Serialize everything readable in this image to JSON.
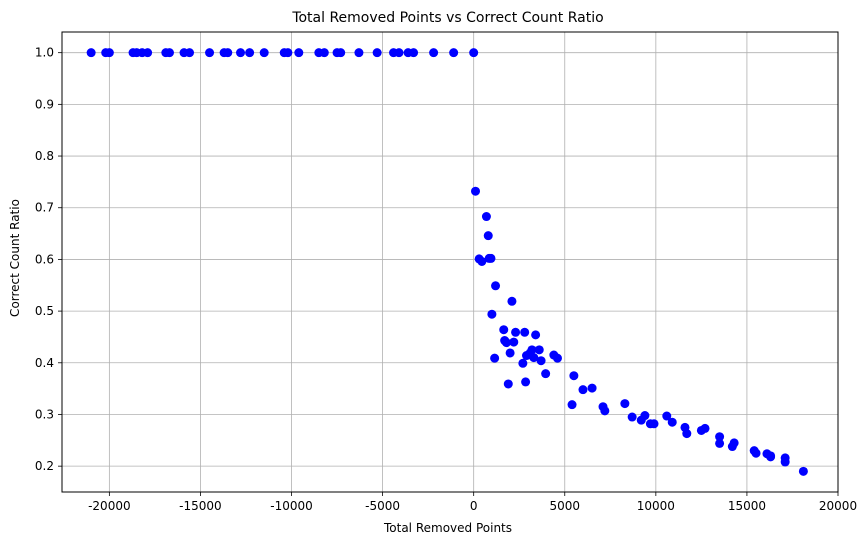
{
  "chart_data": {
    "type": "scatter",
    "title": "Total Removed Points vs Correct Count Ratio",
    "xlabel": "Total Removed Points",
    "ylabel": "Correct Count Ratio",
    "xlim": [
      -22600,
      20000
    ],
    "ylim": [
      0.15,
      1.04
    ],
    "xticks": [
      -20000,
      -15000,
      -10000,
      -5000,
      0,
      5000,
      10000,
      15000,
      20000
    ],
    "yticks": [
      0.2,
      0.3,
      0.4,
      0.5,
      0.6,
      0.7,
      0.8,
      0.9,
      1.0
    ],
    "ytick_labels": [
      "0.2",
      "0.3",
      "0.4",
      "0.5",
      "0.6",
      "0.7",
      "0.8",
      "0.9",
      "1.0"
    ],
    "grid": true,
    "legend": "none",
    "marker_color": "#0000ff",
    "points": [
      [
        -21000,
        1.0
      ],
      [
        -20200,
        1.0
      ],
      [
        -20000,
        1.0
      ],
      [
        -18700,
        1.0
      ],
      [
        -18500,
        1.0
      ],
      [
        -18200,
        1.0
      ],
      [
        -17900,
        1.0
      ],
      [
        -16900,
        1.0
      ],
      [
        -16700,
        1.0
      ],
      [
        -15900,
        1.0
      ],
      [
        -15600,
        1.0
      ],
      [
        -14500,
        1.0
      ],
      [
        -13700,
        1.0
      ],
      [
        -13500,
        1.0
      ],
      [
        -12800,
        1.0
      ],
      [
        -12300,
        1.0
      ],
      [
        -11500,
        1.0
      ],
      [
        -10400,
        1.0
      ],
      [
        -10200,
        1.0
      ],
      [
        -9600,
        1.0
      ],
      [
        -8500,
        1.0
      ],
      [
        -8200,
        1.0
      ],
      [
        -7500,
        1.0
      ],
      [
        -7300,
        1.0
      ],
      [
        -6300,
        1.0
      ],
      [
        -5300,
        1.0
      ],
      [
        -4400,
        1.0
      ],
      [
        -4100,
        1.0
      ],
      [
        -3600,
        1.0
      ],
      [
        -3300,
        1.0
      ],
      [
        -2200,
        1.0
      ],
      [
        -1100,
        1.0
      ],
      [
        0,
        1.0
      ],
      [
        100,
        0.732
      ],
      [
        300,
        0.601
      ],
      [
        450,
        0.596
      ],
      [
        700,
        0.683
      ],
      [
        800,
        0.646
      ],
      [
        850,
        0.602
      ],
      [
        950,
        0.602
      ],
      [
        1000,
        0.494
      ],
      [
        1150,
        0.409
      ],
      [
        1200,
        0.549
      ],
      [
        1650,
        0.464
      ],
      [
        1700,
        0.443
      ],
      [
        1800,
        0.439
      ],
      [
        1900,
        0.359
      ],
      [
        2000,
        0.419
      ],
      [
        2100,
        0.519
      ],
      [
        2200,
        0.44
      ],
      [
        2300,
        0.459
      ],
      [
        2700,
        0.399
      ],
      [
        2800,
        0.459
      ],
      [
        2850,
        0.363
      ],
      [
        2900,
        0.414
      ],
      [
        3100,
        0.419
      ],
      [
        3200,
        0.425
      ],
      [
        3300,
        0.41
      ],
      [
        3400,
        0.454
      ],
      [
        3600,
        0.425
      ],
      [
        3700,
        0.404
      ],
      [
        3950,
        0.379
      ],
      [
        4400,
        0.415
      ],
      [
        4600,
        0.409
      ],
      [
        5400,
        0.319
      ],
      [
        5500,
        0.375
      ],
      [
        6000,
        0.348
      ],
      [
        6500,
        0.351
      ],
      [
        7100,
        0.315
      ],
      [
        7200,
        0.307
      ],
      [
        8300,
        0.321
      ],
      [
        8700,
        0.295
      ],
      [
        9200,
        0.289
      ],
      [
        9400,
        0.298
      ],
      [
        9700,
        0.282
      ],
      [
        9900,
        0.282
      ],
      [
        10600,
        0.297
      ],
      [
        10900,
        0.285
      ],
      [
        11600,
        0.275
      ],
      [
        11700,
        0.263
      ],
      [
        12500,
        0.269
      ],
      [
        12700,
        0.273
      ],
      [
        13500,
        0.244
      ],
      [
        13500,
        0.257
      ],
      [
        14200,
        0.238
      ],
      [
        14300,
        0.245
      ],
      [
        15400,
        0.23
      ],
      [
        15500,
        0.225
      ],
      [
        16100,
        0.224
      ],
      [
        16300,
        0.22
      ],
      [
        16300,
        0.218
      ],
      [
        17100,
        0.208
      ],
      [
        17100,
        0.216
      ],
      [
        18100,
        0.19
      ]
    ]
  }
}
